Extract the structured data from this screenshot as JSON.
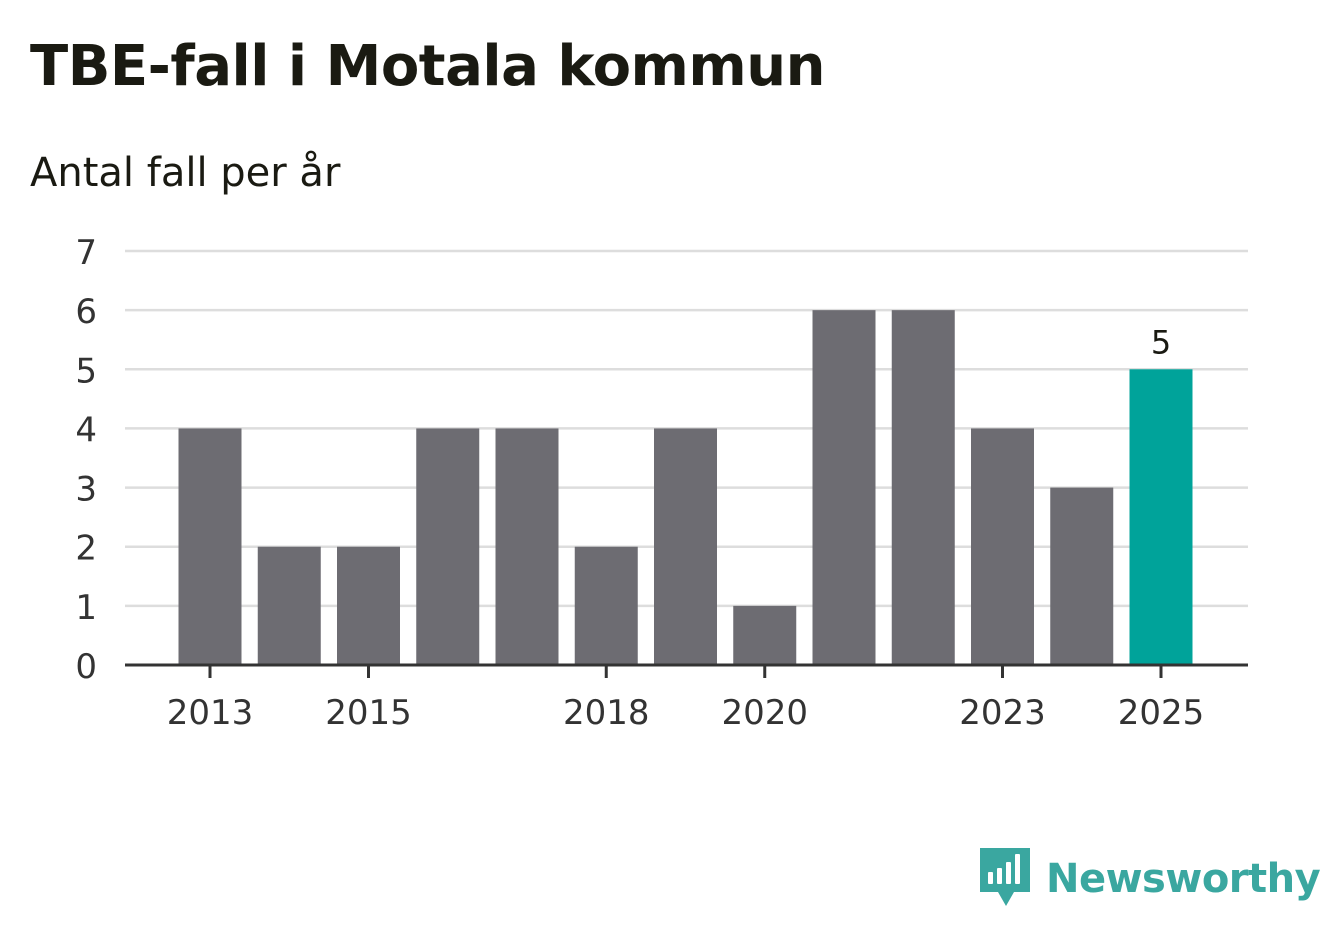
{
  "header": {
    "title": "TBE-fall i Motala kommun",
    "subtitle": "Antal fall per år"
  },
  "brand": {
    "name": "Newsworthy",
    "icon": "newsworthy-logo-icon",
    "color": "#3aa7a0"
  },
  "colors": {
    "bar": "#6d6c72",
    "highlight": "#00a39a",
    "grid": "#dddddd",
    "axis": "#333333"
  },
  "chart_data": {
    "type": "bar",
    "title": "TBE-fall i Motala kommun",
    "subtitle": "Antal fall per år",
    "xlabel": "",
    "ylabel": "",
    "categories": [
      "2013",
      "2014",
      "2015",
      "2016",
      "2017",
      "2018",
      "2019",
      "2020",
      "2021",
      "2022",
      "2023",
      "2024",
      "2025"
    ],
    "values": [
      4,
      2,
      2,
      4,
      4,
      2,
      4,
      1,
      6,
      6,
      4,
      3,
      5
    ],
    "x_tick_labels": [
      "2013",
      "2015",
      "2018",
      "2020",
      "2023",
      "2025"
    ],
    "y_ticks": [
      "0",
      "1",
      "2",
      "3",
      "4",
      "5",
      "6",
      "7"
    ],
    "ylim": [
      0,
      7
    ],
    "grid": true,
    "highlight_category": "2025",
    "annotations": [
      {
        "category": "2025",
        "text": "5"
      }
    ]
  }
}
